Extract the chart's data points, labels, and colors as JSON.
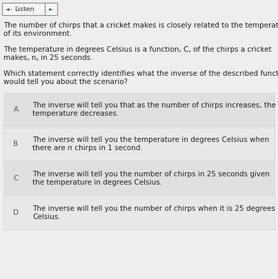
{
  "background_color": "#eeeeee",
  "listen_btn_border": "#999999",
  "paragraph1_line1": "The number of chirps that a cricket makes is closely related to the temperature",
  "paragraph1_line2": "of its environment.",
  "paragraph2_line1": "The temperature in degrees Celsius is a function, C, of the chirps a cricket",
  "paragraph2_line2": "makes, n, in 25 seconds.",
  "question_line1": "Which statement correctly identifies what the inverse of the described function",
  "question_line2": "would tell you about the scenario?",
  "choices": [
    {
      "label": "A",
      "line1": "The inverse will tell you that as the number of chirps increases, the",
      "line2": "temperature decreases.",
      "bg": "#e0e0e0"
    },
    {
      "label": "B",
      "line1": "The inverse will tell you the temperature in degrees Celsius when",
      "line2_pre": "there are ",
      "line2_italic": "n",
      "line2_post": " chirps in 1 second.",
      "bg": "#e8e8e8"
    },
    {
      "label": "C",
      "line1": "The inverse will tell you the number of chirps in 25 seconds given",
      "line2": "the temperature in degrees Celsius.",
      "bg": "#e0e0e0"
    },
    {
      "label": "D",
      "line1": "The inverse will tell you the number of chirps when it is 25 degrees",
      "line2": "Celsius.",
      "bg": "#e8e8e8"
    }
  ],
  "font_size_body": 7.5,
  "font_size_listen": 6.8,
  "text_color": "#222222",
  "label_color": "#555555"
}
